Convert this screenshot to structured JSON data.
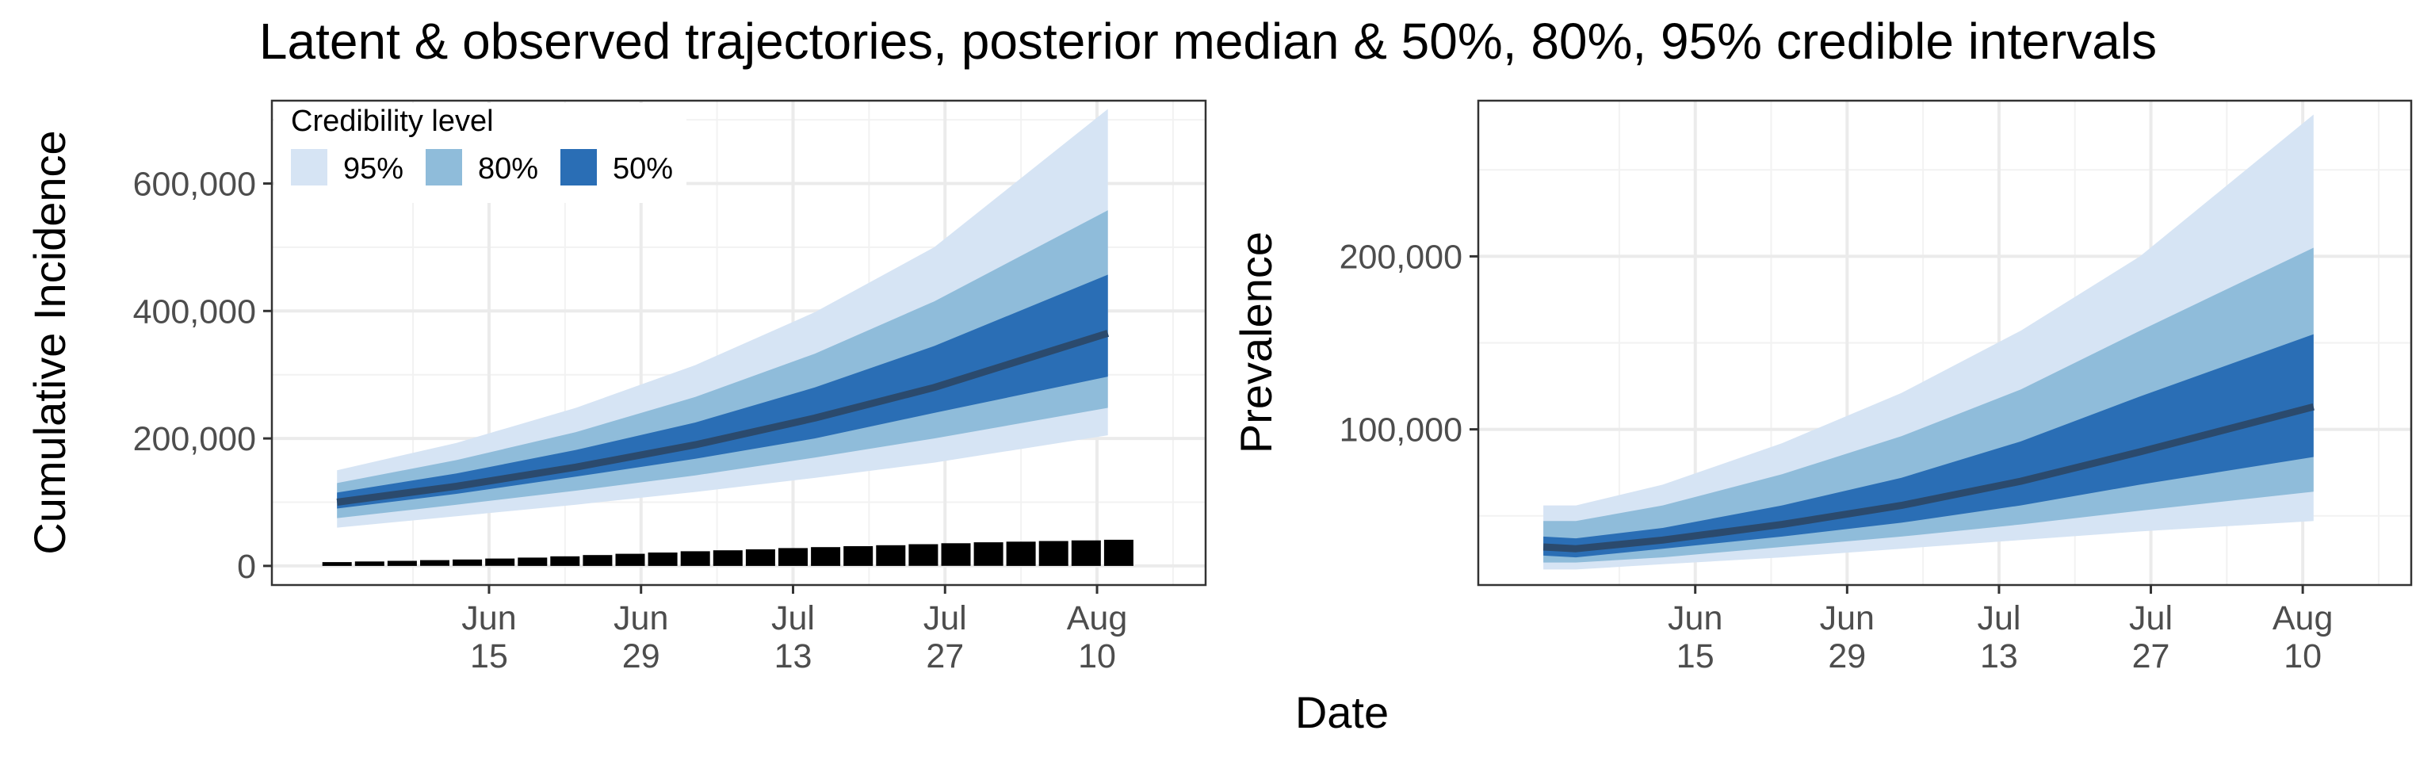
{
  "chart_data": {
    "title": "Latent & observed trajectories, posterior median & 50%, 80%, 95% credible intervals",
    "shared_xlabel": "Date",
    "band_colors": {
      "95%": "#d6e4f4",
      "80%": "#8fbcda",
      "50%": "#2a6eb5",
      "median": "#2b4a6d",
      "observed": "#000000"
    },
    "legend": {
      "title": "Credibility level",
      "placement": "top-left",
      "entries": [
        {
          "label": "95%",
          "color": "#d6e4f4"
        },
        {
          "label": "80%",
          "color": "#8fbcda"
        },
        {
          "label": "50%",
          "color": "#2a6eb5"
        }
      ]
    },
    "x_ticks": [
      {
        "date": "2020-06-15",
        "line1": "Jun",
        "line2": "15"
      },
      {
        "date": "2020-06-29",
        "line1": "Jun",
        "line2": "29"
      },
      {
        "date": "2020-07-13",
        "line1": "Jul",
        "line2": "13"
      },
      {
        "date": "2020-07-27",
        "line1": "Jul",
        "line2": "27"
      },
      {
        "date": "2020-08-10",
        "line1": "Aug",
        "line2": "10"
      }
    ],
    "panels": [
      {
        "type": "area",
        "ylabel": "Cumulative Incidence",
        "xlim": [
          "2020-05-26",
          "2020-08-20"
        ],
        "ylim": [
          -30000,
          730000
        ],
        "y_ticks": [
          0,
          200000,
          400000,
          600000
        ],
        "y_tick_labels": [
          "0",
          "200,000",
          "400,000",
          "600,000"
        ],
        "grid": true,
        "x": [
          "2020-06-01",
          "2020-06-12",
          "2020-06-23",
          "2020-07-04",
          "2020-07-15",
          "2020-07-26",
          "2020-08-11"
        ],
        "median": [
          100000,
          125000,
          155000,
          190000,
          232000,
          280000,
          365000
        ],
        "ci50": {
          "lower": [
            90000,
            113000,
            140000,
            168000,
            200000,
            240000,
            297000
          ],
          "upper": [
            115000,
            145000,
            182000,
            225000,
            280000,
            345000,
            457000
          ]
        },
        "ci80": {
          "lower": [
            75000,
            96000,
            118000,
            142000,
            170000,
            200000,
            248000
          ],
          "upper": [
            130000,
            166000,
            210000,
            265000,
            333000,
            415000,
            558000
          ]
        },
        "ci95": {
          "lower": [
            60000,
            78000,
            96000,
            116000,
            138000,
            162000,
            205000
          ],
          "upper": [
            150000,
            193000,
            248000,
            315000,
            398000,
            500000,
            717000
          ]
        },
        "observed_bars": {
          "dates": [
            "2020-06-01",
            "2020-06-04",
            "2020-06-07",
            "2020-06-10",
            "2020-06-13",
            "2020-06-16",
            "2020-06-19",
            "2020-06-22",
            "2020-06-25",
            "2020-06-28",
            "2020-07-01",
            "2020-07-04",
            "2020-07-07",
            "2020-07-10",
            "2020-07-13",
            "2020-07-16",
            "2020-07-19",
            "2020-07-22",
            "2020-07-25",
            "2020-07-28",
            "2020-07-31",
            "2020-08-03",
            "2020-08-06",
            "2020-08-09",
            "2020-08-12"
          ],
          "values": [
            6000,
            7000,
            8000,
            9000,
            10000,
            11500,
            13000,
            15000,
            17000,
            19000,
            21000,
            23000,
            24500,
            26000,
            28000,
            29500,
            31000,
            32500,
            34000,
            35500,
            37000,
            38000,
            39000,
            40000,
            41000
          ]
        }
      },
      {
        "type": "area",
        "ylabel": "Prevalence",
        "xlim": [
          "2020-05-26",
          "2020-08-20"
        ],
        "ylim": [
          10000,
          290000
        ],
        "y_ticks": [
          100000,
          200000
        ],
        "y_tick_labels": [
          "100,000",
          "200,000"
        ],
        "grid": true,
        "x": [
          "2020-06-01",
          "2020-06-04",
          "2020-06-12",
          "2020-06-23",
          "2020-07-04",
          "2020-07-15",
          "2020-07-26",
          "2020-08-11"
        ],
        "median": [
          32000,
          31000,
          36000,
          45000,
          56000,
          70000,
          87000,
          113000
        ],
        "ci50": {
          "lower": [
            27000,
            26000,
            31000,
            38000,
            46000,
            56000,
            68000,
            84000
          ],
          "upper": [
            38000,
            37000,
            43000,
            56000,
            72000,
            93000,
            119000,
            155000
          ]
        },
        "ci80": {
          "lower": [
            23000,
            23000,
            26000,
            32000,
            38000,
            45000,
            53000,
            64000
          ],
          "upper": [
            47000,
            47000,
            56000,
            74000,
            96000,
            123000,
            157000,
            205000
          ]
        },
        "ci95": {
          "lower": [
            19000,
            19000,
            22000,
            26000,
            31000,
            36000,
            41000,
            47000
          ],
          "upper": [
            56000,
            56000,
            68000,
            92000,
            121000,
            157000,
            200000,
            282000
          ]
        }
      }
    ]
  }
}
